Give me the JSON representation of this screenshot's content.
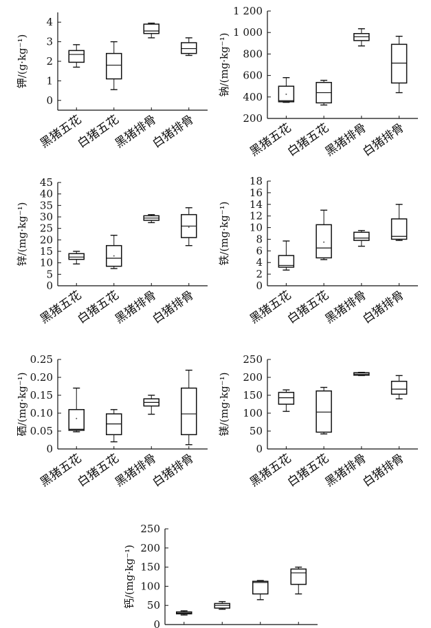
{
  "chart_data": [
    {
      "type": "box",
      "ylabel": "钾/(g·kg⁻¹)",
      "ylim": [
        -0.5,
        4.5
      ],
      "yticks": [
        0,
        1,
        2,
        3,
        4
      ],
      "ytick_labels": [
        "0",
        "1",
        "2",
        "3",
        "4"
      ],
      "categories": [
        "黑猪五花",
        "白猪五花",
        "黑猪排骨",
        "白猪排骨"
      ],
      "boxes": [
        {
          "min": 1.7,
          "q1": 1.95,
          "median": 2.35,
          "q3": 2.55,
          "max": 2.85
        },
        {
          "min": 0.55,
          "q1": 1.1,
          "median": 1.8,
          "q3": 2.4,
          "max": 3.0
        },
        {
          "min": 3.2,
          "q1": 3.42,
          "median": 3.55,
          "q3": 3.9,
          "max": 3.95
        },
        {
          "min": 2.3,
          "q1": 2.4,
          "median": 2.65,
          "q3": 2.95,
          "max": 3.2
        }
      ]
    },
    {
      "type": "box",
      "ylabel": "钠/(mg·kg⁻¹)",
      "ylim": [
        200,
        1200
      ],
      "yticks": [
        200,
        400,
        600,
        800,
        1000,
        1200
      ],
      "ytick_labels": [
        "200",
        "400",
        "600",
        "800",
        "1 000",
        "1 200"
      ],
      "categories": [
        "黑猪五花",
        "白猪五花",
        "黑猪排骨",
        "白猪排骨"
      ],
      "boxes": [
        {
          "min": 350,
          "q1": 355,
          "median": 365,
          "q3": 500,
          "max": 580,
          "mean": 425
        },
        {
          "min": 325,
          "q1": 345,
          "median": 440,
          "q3": 535,
          "max": 555
        },
        {
          "min": 875,
          "q1": 925,
          "median": 960,
          "q3": 990,
          "max": 1035
        },
        {
          "min": 440,
          "q1": 530,
          "median": 715,
          "q3": 890,
          "max": 965
        }
      ]
    },
    {
      "type": "box",
      "ylabel": "锌/(mg·kg⁻¹)",
      "ylim": [
        0,
        45
      ],
      "yticks": [
        0,
        5,
        10,
        15,
        20,
        25,
        30,
        35,
        40,
        45
      ],
      "ytick_labels": [
        "0",
        "5",
        "10",
        "15",
        "20",
        "25",
        "30",
        "35",
        "40",
        "45"
      ],
      "categories": [
        "黑猪五花",
        "白猪五花",
        "黑猪排骨",
        "白猪排骨"
      ],
      "boxes": [
        {
          "min": 9.5,
          "q1": 11.5,
          "median": 12.5,
          "q3": 14,
          "max": 15
        },
        {
          "min": 7.5,
          "q1": 8.5,
          "median": 12,
          "q3": 17.5,
          "max": 22,
          "mean": 13
        },
        {
          "min": 27.5,
          "q1": 28.5,
          "median": 29.5,
          "q3": 30.5,
          "max": 31
        },
        {
          "min": 17.5,
          "q1": 21,
          "median": 26,
          "q3": 31,
          "max": 34,
          "mean": 25.5
        }
      ]
    },
    {
      "type": "box",
      "ylabel": "铁/(mg·kg⁻¹)",
      "ylim": [
        0,
        18
      ],
      "yticks": [
        0,
        2,
        4,
        6,
        8,
        10,
        12,
        14,
        16,
        18
      ],
      "ytick_labels": [
        "0",
        "2",
        "4",
        "6",
        "8",
        "10",
        "12",
        "14",
        "16",
        "18"
      ],
      "categories": [
        "黑猪五花",
        "白猪五花",
        "黑猪排骨",
        "白猪排骨"
      ],
      "boxes": [
        {
          "min": 2.7,
          "q1": 3.2,
          "median": 3.5,
          "q3": 5.2,
          "max": 7.7
        },
        {
          "min": 4.5,
          "q1": 4.8,
          "median": 6.5,
          "q3": 10.5,
          "max": 13,
          "mean": 7.5
        },
        {
          "min": 6.8,
          "q1": 7.8,
          "median": 8.2,
          "q3": 9.2,
          "max": 9.5
        },
        {
          "min": 7.8,
          "q1": 8,
          "median": 8.5,
          "q3": 11.5,
          "max": 14
        }
      ]
    },
    {
      "type": "box",
      "ylabel": "硒/(mg·kg⁻¹)",
      "ylim": [
        0,
        0.25
      ],
      "yticks": [
        0,
        0.05,
        0.1,
        0.15,
        0.2,
        0.25
      ],
      "ytick_labels": [
        "0",
        "0.05",
        "0.10",
        "0.15",
        "0.20",
        "0.25"
      ],
      "categories": [
        "黑猪五花",
        "白猪五花",
        "黑猪排骨",
        "白猪排骨"
      ],
      "boxes": [
        {
          "min": 0.048,
          "q1": 0.052,
          "median": 0.055,
          "q3": 0.11,
          "max": 0.17,
          "mean": 0.085
        },
        {
          "min": 0.02,
          "q1": 0.04,
          "median": 0.07,
          "q3": 0.098,
          "max": 0.11
        },
        {
          "min": 0.097,
          "q1": 0.12,
          "median": 0.13,
          "q3": 0.14,
          "max": 0.15
        },
        {
          "min": 0.012,
          "q1": 0.04,
          "median": 0.098,
          "q3": 0.17,
          "max": 0.22
        }
      ]
    },
    {
      "type": "box",
      "ylabel": "镁/(mg·kg⁻¹)",
      "ylim": [
        0,
        250
      ],
      "yticks": [
        0,
        50,
        100,
        150,
        200,
        250
      ],
      "ytick_labels": [
        "0",
        "50",
        "100",
        "150",
        "200",
        "250"
      ],
      "categories": [
        "黑猪五花",
        "白猪五花",
        "黑猪排骨",
        "白猪排骨"
      ],
      "boxes": [
        {
          "min": 105,
          "q1": 125,
          "median": 143,
          "q3": 158,
          "max": 165
        },
        {
          "min": 42,
          "q1": 47,
          "median": 103,
          "q3": 162,
          "max": 172
        },
        {
          "min": 205,
          "q1": 206,
          "median": 209,
          "q3": 213,
          "max": 214
        },
        {
          "min": 140,
          "q1": 153,
          "median": 167,
          "q3": 189,
          "max": 205
        }
      ]
    },
    {
      "type": "box",
      "ylabel": "钙/(mg·kg⁻¹)",
      "ylim": [
        0,
        250
      ],
      "yticks": [
        0,
        50,
        100,
        150,
        200,
        250
      ],
      "ytick_labels": [
        "0",
        "50",
        "100",
        "150",
        "200",
        "250"
      ],
      "categories": [
        "",
        "",
        "",
        ""
      ],
      "boxes": [
        {
          "min": 25,
          "q1": 28,
          "median": 30,
          "q3": 33,
          "max": 36
        },
        {
          "min": 40,
          "q1": 43,
          "median": 50,
          "q3": 55,
          "max": 60
        },
        {
          "min": 65,
          "q1": 80,
          "median": 110,
          "q3": 113,
          "max": 115
        },
        {
          "min": 80,
          "q1": 105,
          "median": 135,
          "q3": 145,
          "max": 150
        }
      ]
    }
  ]
}
